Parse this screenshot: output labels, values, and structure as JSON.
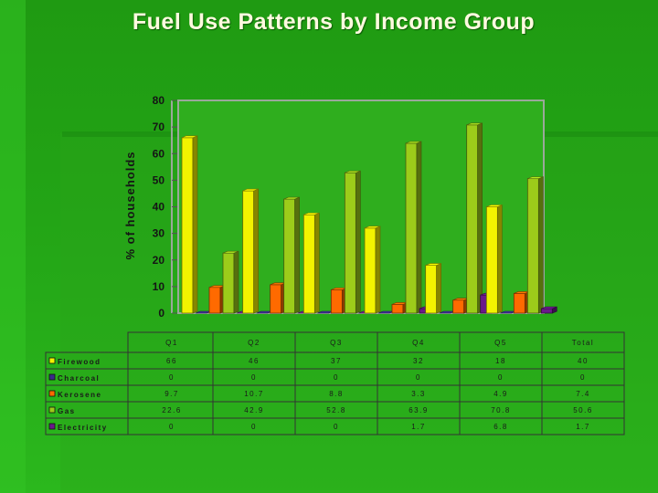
{
  "title": "Fuel Use Patterns by Income Group",
  "chart_data": {
    "type": "bar",
    "title": "Fuel Use Patterns by Income Group",
    "xlabel": "",
    "ylabel": "% of households",
    "ylim": [
      0,
      80
    ],
    "yticks": [
      0,
      10,
      20,
      30,
      40,
      50,
      60,
      70,
      80
    ],
    "grid": false,
    "legend": "table-left",
    "categories": [
      "Q1",
      "Q2",
      "Q3",
      "Q4",
      "Q5",
      "Total"
    ],
    "series": [
      {
        "name": "Firewood",
        "color": "#f3f300",
        "values": [
          66,
          46,
          37,
          32,
          18,
          40
        ],
        "labels": [
          "66",
          "46",
          "37",
          "32",
          "18",
          "40"
        ]
      },
      {
        "name": "Charcoal",
        "color": "#3a2a8a",
        "values": [
          0,
          0,
          0,
          0,
          0,
          0
        ],
        "labels": [
          "0",
          "0",
          "0",
          "0",
          "0",
          "0"
        ]
      },
      {
        "name": "Kerosene",
        "color": "#ff6a00",
        "values": [
          9.7,
          10.7,
          8.8,
          3.3,
          4.9,
          7.4
        ],
        "labels": [
          "9.7",
          "10.7",
          "8.8",
          "3.3",
          "4.9",
          "7.4"
        ]
      },
      {
        "name": "Gas",
        "color": "#9ccc1a",
        "values": [
          22.6,
          42.9,
          52.8,
          63.9,
          70.8,
          50.6
        ],
        "labels": [
          "22.6",
          "42.9",
          "52.8",
          "63.9",
          "70.8",
          "50.6"
        ]
      },
      {
        "name": "Electricity",
        "color": "#6a1a8a",
        "values": [
          0,
          0,
          0,
          1.7,
          6.8,
          1.7
        ],
        "labels": [
          "0",
          "0",
          "0",
          "1.7",
          "6.8",
          "1.7"
        ]
      }
    ]
  }
}
